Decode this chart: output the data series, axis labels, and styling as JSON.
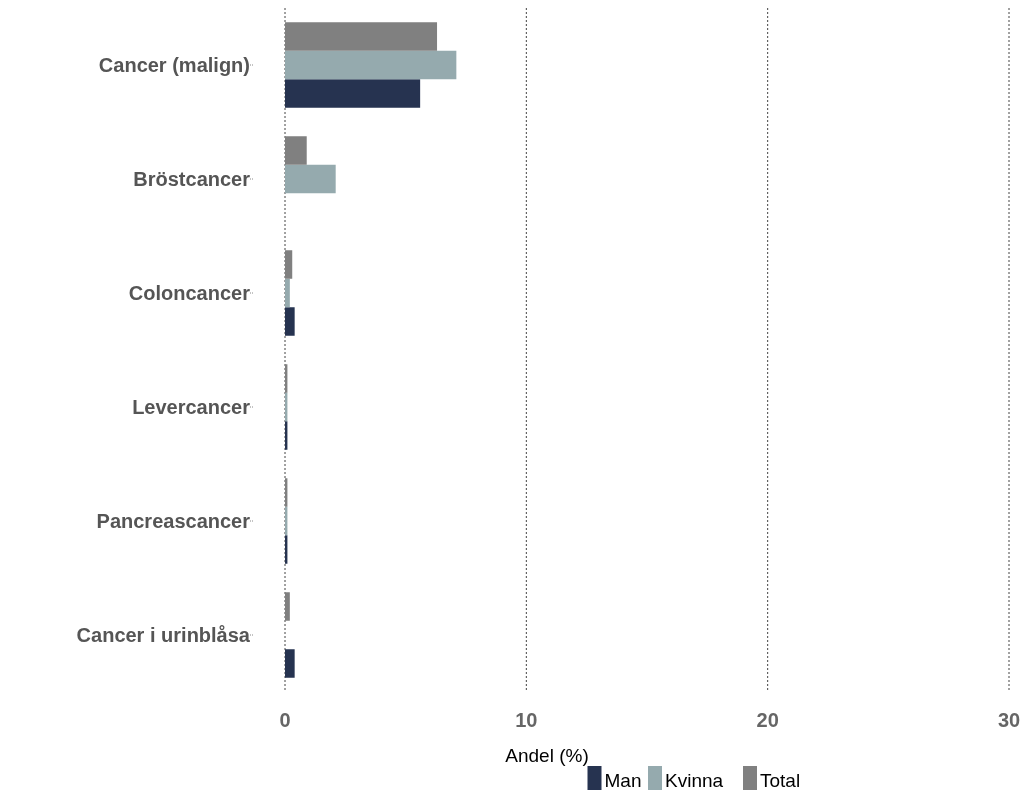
{
  "chart_data": {
    "type": "bar",
    "orientation": "horizontal",
    "xlabel": "Andel (%)",
    "categories": [
      "Cancer (malign)",
      "Bröstcancer",
      "Coloncancer",
      "Levercancer",
      "Pancreascancer",
      "Cancer i urinblåsa"
    ],
    "series": [
      {
        "name": "Man",
        "color": "#263350",
        "values": [
          5.6,
          0,
          0.4,
          0.1,
          0.1,
          0.4
        ]
      },
      {
        "name": "Kvinna",
        "color": "#95aaae",
        "values": [
          7.1,
          2.1,
          0.2,
          0.1,
          0.1,
          0
        ]
      },
      {
        "name": "Total",
        "color": "#808080",
        "values": [
          6.3,
          0.9,
          0.3,
          0.1,
          0.1,
          0.2
        ]
      }
    ],
    "xlim": [
      0,
      30
    ],
    "xticks": [
      0,
      10,
      20,
      30
    ],
    "grid": "x",
    "legend": "bottom"
  }
}
